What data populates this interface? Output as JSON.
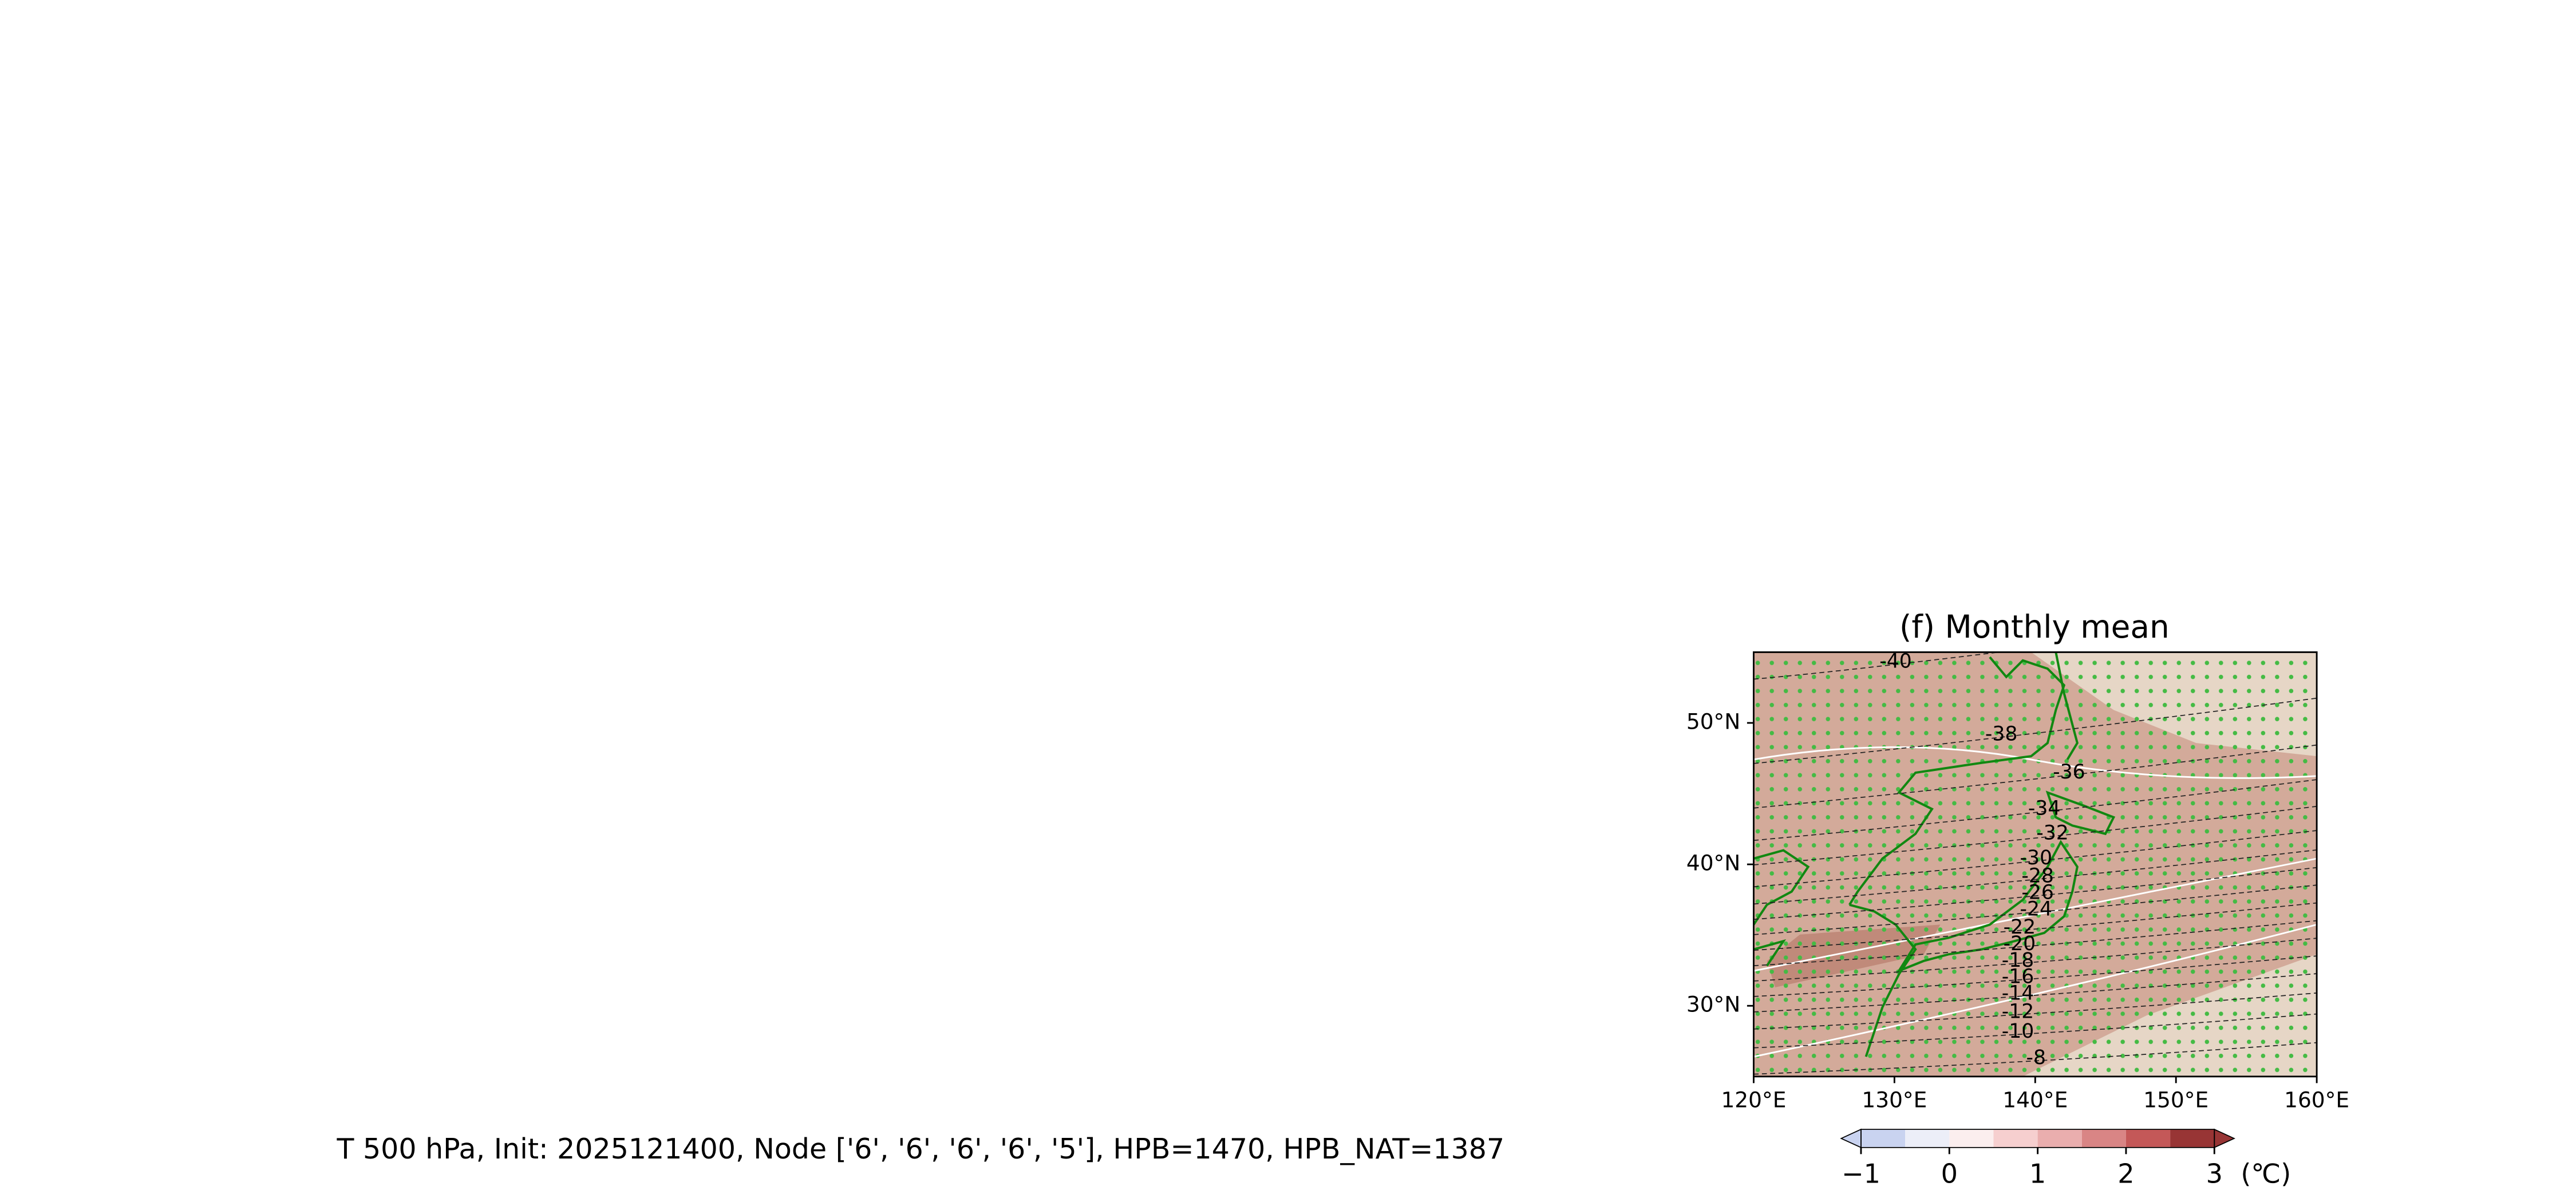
{
  "title": "(f) Monthly mean",
  "footer": "T 500 hPa, Init: 2025121400, Node ['6', '6', '6', '6', '5'], HPB=1470, HPB_NAT=1387",
  "map": {
    "xlim": [
      120,
      160
    ],
    "ylim": [
      25,
      55
    ],
    "xticks": [
      {
        "value": 120,
        "label": "120°E"
      },
      {
        "value": 130,
        "label": "130°E"
      },
      {
        "value": 140,
        "label": "140°E"
      },
      {
        "value": 150,
        "label": "150°E"
      },
      {
        "value": 160,
        "label": "160°E"
      }
    ],
    "yticks": [
      {
        "value": 30,
        "label": "30°N"
      },
      {
        "value": 40,
        "label": "40°N"
      },
      {
        "value": 50,
        "label": "50°N"
      }
    ],
    "contour_labels": [
      "-40",
      "-38",
      "-36",
      "-34",
      "-32",
      "-30",
      "-28",
      "-26",
      "-24",
      "-22",
      "-20",
      "-18",
      "-16",
      "-14",
      "-12",
      "-10",
      "-8"
    ]
  },
  "colorbar": {
    "levels": [
      -1,
      -0.5,
      0,
      0.5,
      1,
      1.5,
      2,
      2.5,
      3
    ],
    "colors": [
      "#c9d3f0",
      "#eceef8",
      "#fbeeee",
      "#f6cfcf",
      "#eaaeae",
      "#d98585",
      "#c45858",
      "#983535"
    ],
    "ticks": [
      {
        "value": -1,
        "label": "−1"
      },
      0,
      1,
      2,
      3
    ],
    "unit": "(℃)"
  }
}
